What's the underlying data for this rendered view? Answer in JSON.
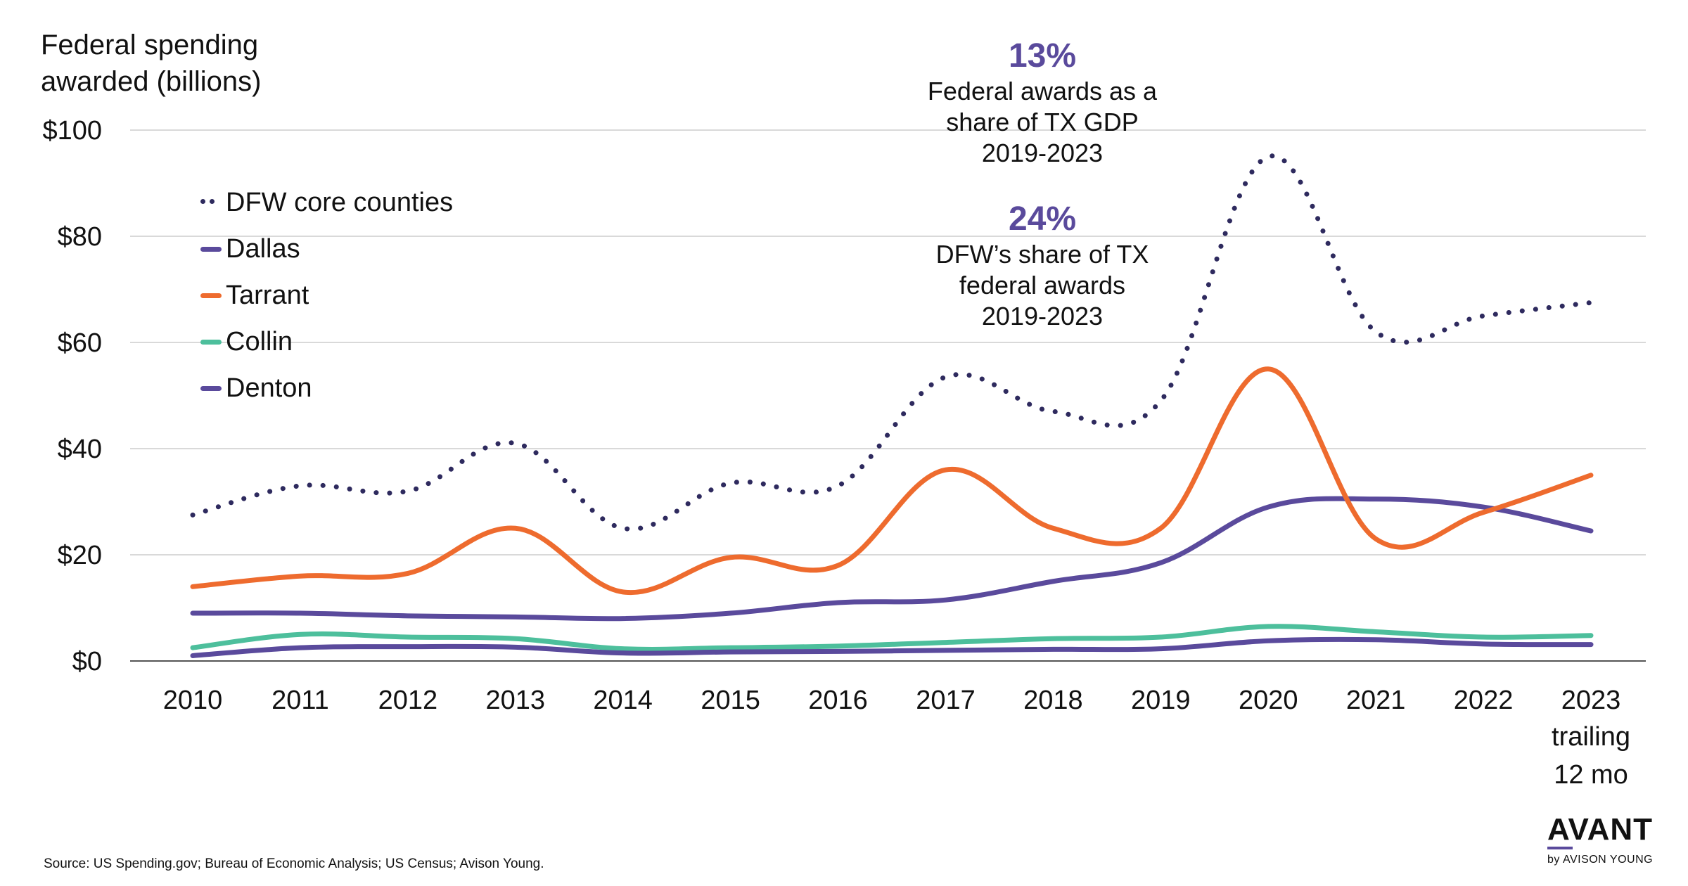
{
  "chart_data": {
    "type": "line",
    "title": "",
    "ylabel": "Federal spending awarded (billions)",
    "xlabel": "",
    "ylim": [
      0,
      100
    ],
    "yticks": [
      0,
      20,
      40,
      60,
      80,
      100
    ],
    "ytick_labels": [
      "$0",
      "$20",
      "$40",
      "$60",
      "$80",
      "$100"
    ],
    "grid": true,
    "legend_position": "upper-left",
    "categories": [
      "2010",
      "2011",
      "2012",
      "2013",
      "2014",
      "2015",
      "2016",
      "2017",
      "2018",
      "2019",
      "2020",
      "2021",
      "2022",
      "2023"
    ],
    "last_category_note": [
      "trailing",
      "12 mo"
    ],
    "series": [
      {
        "name": "DFW core counties",
        "color": "#2e2a5e",
        "style": "dotted",
        "values": [
          27.5,
          33,
          32,
          41,
          25,
          33.5,
          33,
          53.5,
          47,
          49,
          95,
          62,
          65,
          67.5
        ]
      },
      {
        "name": "Dallas",
        "color": "#5a4a9c",
        "style": "solid",
        "values": [
          9,
          9,
          8.5,
          8.3,
          8,
          9,
          11,
          11.5,
          15,
          18.5,
          29,
          30.5,
          29,
          24.5
        ]
      },
      {
        "name": "Tarrant",
        "color": "#ee6b2e",
        "style": "solid",
        "values": [
          14,
          16,
          16.5,
          25,
          13,
          19.5,
          18,
          36,
          25,
          25,
          55,
          23,
          28,
          35
        ]
      },
      {
        "name": "Collin",
        "color": "#4dbf9c",
        "style": "solid",
        "values": [
          2.5,
          5,
          4.5,
          4.2,
          2.3,
          2.5,
          2.8,
          3.5,
          4.2,
          4.5,
          6.5,
          5.5,
          4.5,
          4.8
        ]
      },
      {
        "name": "Denton",
        "color": "#5a4a9c",
        "style": "solid",
        "values": [
          1,
          2.5,
          2.7,
          2.6,
          1.5,
          1.7,
          1.8,
          2,
          2.2,
          2.3,
          3.8,
          4,
          3.2,
          3.1
        ]
      }
    ],
    "annotations": [
      {
        "value": "13%",
        "text_lines": [
          "Federal awards as a",
          "share of TX GDP",
          "2019-2023"
        ]
      },
      {
        "value": "24%",
        "text_lines": [
          "DFW’s share of TX",
          "federal awards",
          "2019-2023"
        ]
      }
    ]
  },
  "y_axis_title_lines": [
    "Federal spending",
    "awarded (billions)"
  ],
  "source_text": "Source: US Spending.gov; Bureau of Economic Analysis; US Census; Avison Young.",
  "logo": {
    "main": "AVANT",
    "sub": "by AVISON YOUNG"
  },
  "colors": {
    "accent": "#5a4a9c",
    "grid": "#d9d9d9",
    "axis": "#555555"
  }
}
